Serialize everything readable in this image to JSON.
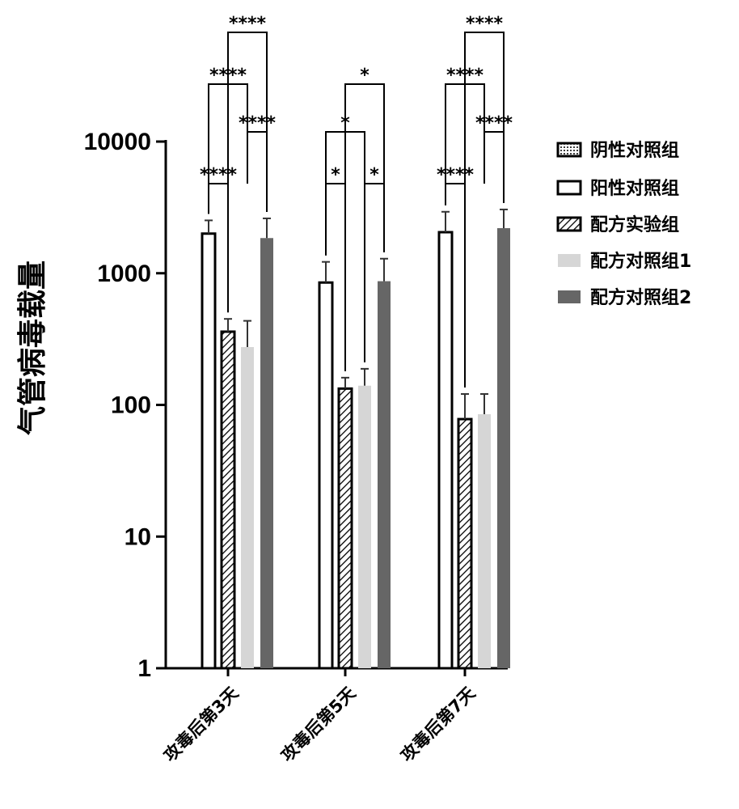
{
  "chart_data": {
    "type": "bar",
    "ylabel": "气管病毒载量",
    "yscale": "log",
    "ylim": [
      1,
      10000
    ],
    "yticks": [
      "1",
      "10",
      "100",
      "1000",
      "10000"
    ],
    "categories": [
      "攻毒后第3天",
      "攻毒后第5天",
      "攻毒后第7天"
    ],
    "series": [
      {
        "name": "阴性对照组",
        "color": "#ffffff",
        "pattern": "dots",
        "values": [
          null,
          null,
          null
        ],
        "errors": [
          null,
          null,
          null
        ]
      },
      {
        "name": "阳性对照组",
        "color": "#ffffff",
        "pattern": "none",
        "values": [
          2000,
          850,
          2050
        ],
        "errors": [
          520,
          370,
          880
        ]
      },
      {
        "name": "配方实验组",
        "color": "#ffffff",
        "pattern": "hatch",
        "values": [
          360,
          133,
          78
        ],
        "errors": [
          90,
          28,
          43
        ]
      },
      {
        "name": "配方对照组1",
        "color": "#d6d6d6",
        "pattern": "none",
        "values": [
          275,
          140,
          85
        ],
        "errors": [
          160,
          48,
          36
        ]
      },
      {
        "name": "配方对照组2",
        "color": "#666666",
        "pattern": "none",
        "values": [
          1850,
          870,
          2200
        ],
        "errors": [
          760,
          420,
          850
        ]
      }
    ],
    "significance": [
      {
        "group": 0,
        "from": 1,
        "to": 2,
        "label": "****",
        "level": 0
      },
      {
        "group": 0,
        "from": 1,
        "to": 3,
        "label": "****",
        "level": 2
      },
      {
        "group": 0,
        "from": 2,
        "to": 4,
        "label": "****",
        "level": 3
      },
      {
        "group": 0,
        "from": 3,
        "to": 4,
        "label": "****",
        "level": 1
      },
      {
        "group": 1,
        "from": 1,
        "to": 2,
        "label": "*",
        "level": 0
      },
      {
        "group": 1,
        "from": 1,
        "to": 3,
        "label": "*",
        "level": 1
      },
      {
        "group": 1,
        "from": 2,
        "to": 4,
        "label": "*",
        "level": 2
      },
      {
        "group": 1,
        "from": 3,
        "to": 4,
        "label": "*",
        "level": 0
      },
      {
        "group": 2,
        "from": 1,
        "to": 2,
        "label": "****",
        "level": 0
      },
      {
        "group": 2,
        "from": 1,
        "to": 3,
        "label": "****",
        "level": 2
      },
      {
        "group": 2,
        "from": 2,
        "to": 4,
        "label": "****",
        "level": 3
      },
      {
        "group": 2,
        "from": 3,
        "to": 4,
        "label": "****",
        "level": 1
      }
    ],
    "legend_position": "right"
  }
}
